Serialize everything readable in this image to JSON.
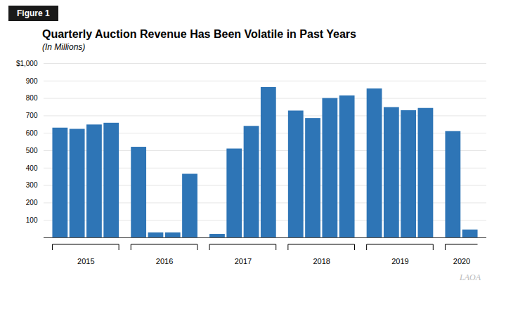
{
  "chart_data": {
    "type": "bar",
    "title": "Quarterly Auction Revenue Has Been Volatile in Past Years",
    "subtitle": "(In Millions)",
    "annotations": [
      "Figure 1",
      "LAOA"
    ],
    "categories": [
      "2015",
      "2015",
      "2015",
      "2015",
      "2016",
      "2016",
      "2016",
      "2016",
      "2017",
      "2017",
      "2017",
      "2017",
      "2018",
      "2018",
      "2018",
      "2018",
      "2019",
      "2019",
      "2019",
      "2019",
      "2020",
      "2020"
    ],
    "values": [
      630,
      623,
      648,
      658,
      520,
      28,
      28,
      365,
      20,
      510,
      640,
      863,
      728,
      685,
      800,
      815,
      855,
      748,
      730,
      743,
      610,
      45
    ],
    "color": "#2E75B6",
    "ylim": [
      0,
      1000
    ],
    "yticks": [
      {
        "value": 0,
        "label": ""
      },
      100,
      200,
      300,
      400,
      500,
      600,
      700,
      800,
      900,
      {
        "value": 1000,
        "label": "$1,000"
      }
    ],
    "grid": true
  }
}
